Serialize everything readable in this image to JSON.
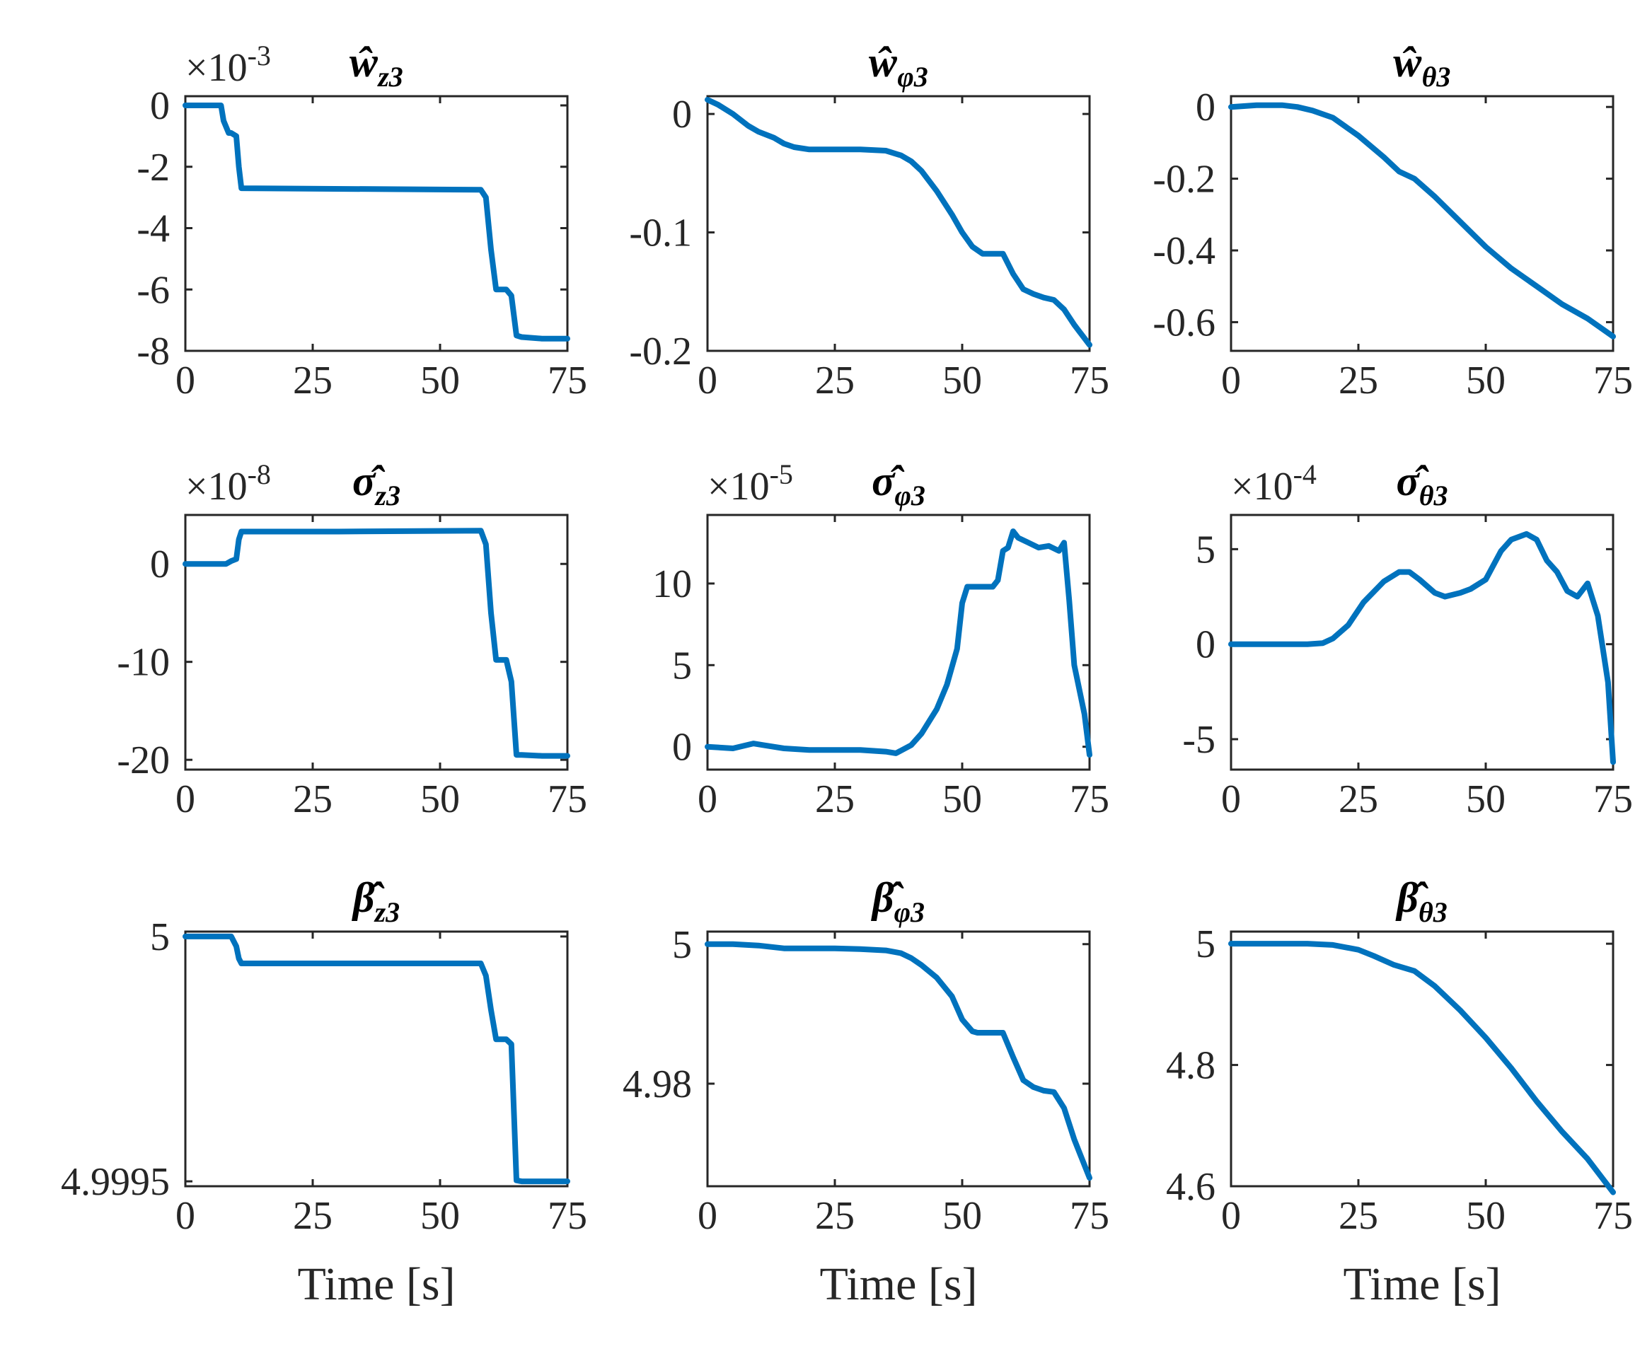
{
  "colors": {
    "series": "#0072BD",
    "axis": "#262626"
  },
  "chart_data": [
    {
      "type": "line",
      "title": "ŵ",
      "title_sub": "z3",
      "exponent": "-3",
      "xlabel": "",
      "xlim": [
        0,
        75
      ],
      "xticks": [
        0,
        25,
        50,
        75
      ],
      "xtick_labels": [
        "0",
        "25",
        "50",
        "75"
      ],
      "ylim": [
        -8,
        0.3
      ],
      "yticks": [
        0,
        -2,
        -4,
        -6,
        -8
      ],
      "ytick_labels": [
        "0",
        "-2",
        "-4",
        "-6",
        "-8"
      ],
      "series": [
        {
          "name": "ŵ_z3",
          "x": [
            0,
            7,
            7.5,
            8.5,
            9,
            10,
            10.5,
            11,
            58,
            59,
            60,
            61,
            62,
            63,
            64,
            65,
            66,
            70,
            75
          ],
          "y": [
            0,
            0,
            -0.5,
            -0.9,
            -0.9,
            -1.0,
            -2.0,
            -2.7,
            -2.75,
            -3.0,
            -4.7,
            -6.0,
            -6.0,
            -6.0,
            -6.2,
            -7.5,
            -7.55,
            -7.6,
            -7.6
          ]
        }
      ]
    },
    {
      "type": "line",
      "title": "ŵ",
      "title_sub": "φ3",
      "exponent": "",
      "xlabel": "",
      "xlim": [
        0,
        75
      ],
      "xticks": [
        0,
        25,
        50,
        75
      ],
      "xtick_labels": [
        "0",
        "25",
        "50",
        "75"
      ],
      "ylim": [
        -0.2,
        0.015
      ],
      "yticks": [
        0,
        -0.1,
        -0.2
      ],
      "ytick_labels": [
        "0",
        "-0.1",
        "-0.2"
      ],
      "series": [
        {
          "name": "ŵ_φ3",
          "x": [
            0,
            2,
            5,
            8,
            10,
            13,
            15,
            17,
            20,
            25,
            30,
            35,
            38,
            40,
            42,
            45,
            48,
            50,
            52,
            54,
            55,
            57,
            58,
            60,
            62,
            64,
            66,
            68,
            70,
            72,
            75
          ],
          "y": [
            0.012,
            0.008,
            0.0,
            -0.01,
            -0.015,
            -0.02,
            -0.025,
            -0.028,
            -0.03,
            -0.03,
            -0.03,
            -0.031,
            -0.035,
            -0.04,
            -0.048,
            -0.065,
            -0.085,
            -0.1,
            -0.112,
            -0.118,
            -0.118,
            -0.118,
            -0.118,
            -0.135,
            -0.148,
            -0.152,
            -0.155,
            -0.157,
            -0.165,
            -0.178,
            -0.195
          ]
        }
      ]
    },
    {
      "type": "line",
      "title": "ŵ",
      "title_sub": "θ3",
      "exponent": "",
      "xlabel": "",
      "xlim": [
        0,
        75
      ],
      "xticks": [
        0,
        25,
        50,
        75
      ],
      "xtick_labels": [
        "0",
        "25",
        "50",
        "75"
      ],
      "ylim": [
        -0.68,
        0.03
      ],
      "yticks": [
        0,
        -0.2,
        -0.4,
        -0.6
      ],
      "ytick_labels": [
        "0",
        "-0.2",
        "-0.4",
        "-0.6"
      ],
      "series": [
        {
          "name": "ŵ_θ3",
          "x": [
            0,
            5,
            10,
            13,
            16,
            20,
            25,
            30,
            33,
            36,
            40,
            45,
            50,
            55,
            60,
            65,
            70,
            75
          ],
          "y": [
            0,
            0.005,
            0.005,
            0.0,
            -0.01,
            -0.03,
            -0.08,
            -0.14,
            -0.18,
            -0.2,
            -0.25,
            -0.32,
            -0.39,
            -0.45,
            -0.5,
            -0.55,
            -0.59,
            -0.64
          ]
        }
      ]
    },
    {
      "type": "line",
      "title": "σ̂",
      "title_sub": "z3",
      "exponent": "-8",
      "xlabel": "",
      "xlim": [
        0,
        75
      ],
      "xticks": [
        0,
        25,
        50,
        75
      ],
      "xtick_labels": [
        "0",
        "25",
        "50",
        "75"
      ],
      "ylim": [
        -21,
        5
      ],
      "yticks": [
        0,
        -10,
        -20
      ],
      "ytick_labels": [
        "0",
        "-10",
        "-20"
      ],
      "series": [
        {
          "name": "σ̂_z3",
          "x": [
            0,
            8,
            9,
            10,
            10.5,
            11,
            30,
            58,
            59,
            60,
            61,
            62,
            63,
            64,
            65,
            66,
            70,
            75
          ],
          "y": [
            0,
            0,
            0.3,
            0.5,
            2.5,
            3.3,
            3.3,
            3.4,
            2.0,
            -5.0,
            -9.8,
            -9.8,
            -9.8,
            -12.0,
            -19.5,
            -19.5,
            -19.6,
            -19.6
          ]
        }
      ]
    },
    {
      "type": "line",
      "title": "σ̂",
      "title_sub": "φ3",
      "exponent": "-5",
      "xlabel": "",
      "xlim": [
        0,
        75
      ],
      "xticks": [
        0,
        25,
        50,
        75
      ],
      "xtick_labels": [
        "0",
        "25",
        "50",
        "75"
      ],
      "ylim": [
        -1.4,
        14.2
      ],
      "yticks": [
        0,
        5,
        10
      ],
      "ytick_labels": [
        "0",
        "5",
        "10"
      ],
      "series": [
        {
          "name": "σ̂_φ3",
          "x": [
            0,
            5,
            9,
            11,
            15,
            20,
            25,
            30,
            35,
            37,
            40,
            42,
            45,
            47,
            49,
            50,
            51,
            55,
            56,
            57,
            58,
            59,
            60,
            61,
            63,
            65,
            67,
            69,
            70,
            71,
            72,
            74,
            75
          ],
          "y": [
            0,
            -0.1,
            0.2,
            0.1,
            -0.1,
            -0.2,
            -0.2,
            -0.2,
            -0.3,
            -0.4,
            0.1,
            0.8,
            2.3,
            3.8,
            6.0,
            8.8,
            9.8,
            9.8,
            9.8,
            10.2,
            12.0,
            12.2,
            13.2,
            12.8,
            12.5,
            12.2,
            12.3,
            12.0,
            12.5,
            9.0,
            5.0,
            2.0,
            -0.5
          ]
        }
      ]
    },
    {
      "type": "line",
      "title": "σ̂",
      "title_sub": "θ3",
      "exponent": "-4",
      "xlabel": "",
      "xlim": [
        0,
        75
      ],
      "xticks": [
        0,
        25,
        50,
        75
      ],
      "xtick_labels": [
        "0",
        "25",
        "50",
        "75"
      ],
      "ylim": [
        -6.6,
        6.8
      ],
      "yticks": [
        5,
        0,
        -5
      ],
      "ytick_labels": [
        "5",
        "0",
        "-5"
      ],
      "series": [
        {
          "name": "σ̂_θ3",
          "x": [
            0,
            10,
            15,
            18,
            20,
            23,
            26,
            30,
            33,
            35,
            37,
            40,
            42,
            45,
            47,
            50,
            53,
            55,
            58,
            60,
            62,
            64,
            66,
            68,
            70,
            72,
            74,
            75
          ],
          "y": [
            0,
            0,
            0,
            0.05,
            0.3,
            1.0,
            2.2,
            3.3,
            3.8,
            3.8,
            3.4,
            2.7,
            2.5,
            2.7,
            2.9,
            3.4,
            4.9,
            5.5,
            5.8,
            5.5,
            4.4,
            3.8,
            2.8,
            2.5,
            3.2,
            1.5,
            -2.0,
            -6.2
          ]
        }
      ]
    },
    {
      "type": "line",
      "title": "β̂",
      "title_sub": "z3",
      "exponent": "",
      "xlabel": "Time [s]",
      "xlim": [
        0,
        75
      ],
      "xticks": [
        0,
        25,
        50,
        75
      ],
      "xtick_labels": [
        "0",
        "25",
        "50",
        "75"
      ],
      "ylim": [
        4.99949,
        5.00001
      ],
      "yticks": [
        5,
        4.9995
      ],
      "ytick_labels": [
        "5",
        "4.9995"
      ],
      "series": [
        {
          "name": "β̂_z3",
          "x": [
            0,
            9,
            10,
            10.5,
            11,
            30,
            58,
            59,
            60,
            61,
            62,
            63,
            64,
            65,
            66,
            70,
            75
          ],
          "y": [
            5.0,
            5.0,
            4.99998,
            4.999955,
            4.999945,
            4.999945,
            4.999945,
            4.99992,
            4.99985,
            4.99979,
            4.99979,
            4.99979,
            4.99978,
            4.999502,
            4.9995,
            4.9995,
            4.9995
          ]
        }
      ]
    },
    {
      "type": "line",
      "title": "β̂",
      "title_sub": "φ3",
      "exponent": "",
      "xlabel": "Time [s]",
      "xlim": [
        0,
        75
      ],
      "xticks": [
        0,
        25,
        50,
        75
      ],
      "xtick_labels": [
        "0",
        "25",
        "50",
        "75"
      ],
      "ylim": [
        4.9653,
        5.0018
      ],
      "yticks": [
        5,
        4.98
      ],
      "ytick_labels": [
        "5",
        "4.98"
      ],
      "series": [
        {
          "name": "β̂_φ3",
          "x": [
            0,
            5,
            10,
            15,
            20,
            25,
            30,
            35,
            38,
            40,
            42,
            45,
            48,
            50,
            52,
            53,
            55,
            57,
            58,
            60,
            62,
            64,
            66,
            68,
            70,
            72,
            75
          ],
          "y": [
            5.0,
            5.0,
            4.9998,
            4.9994,
            4.9994,
            4.9994,
            4.9993,
            4.9991,
            4.9987,
            4.998,
            4.997,
            4.9952,
            4.9925,
            4.9892,
            4.9875,
            4.9873,
            4.9873,
            4.9873,
            4.9873,
            4.9838,
            4.9805,
            4.9795,
            4.979,
            4.9788,
            4.9765,
            4.972,
            4.9665
          ]
        }
      ]
    },
    {
      "type": "line",
      "title": "β̂",
      "title_sub": "θ3",
      "exponent": "",
      "xlabel": "Time [s]",
      "xlim": [
        0,
        75
      ],
      "xticks": [
        0,
        25,
        50,
        75
      ],
      "xtick_labels": [
        "0",
        "25",
        "50",
        "75"
      ],
      "ylim": [
        4.6,
        5.02
      ],
      "yticks": [
        5,
        4.8,
        4.6
      ],
      "ytick_labels": [
        "5",
        "4.8",
        "4.6"
      ],
      "series": [
        {
          "name": "β̂_θ3",
          "x": [
            0,
            10,
            15,
            20,
            25,
            28,
            32,
            36,
            40,
            45,
            50,
            55,
            60,
            65,
            70,
            75
          ],
          "y": [
            5.0,
            5.0,
            5.0,
            4.998,
            4.99,
            4.98,
            4.965,
            4.955,
            4.93,
            4.89,
            4.845,
            4.795,
            4.74,
            4.69,
            4.645,
            4.59
          ]
        }
      ]
    }
  ]
}
